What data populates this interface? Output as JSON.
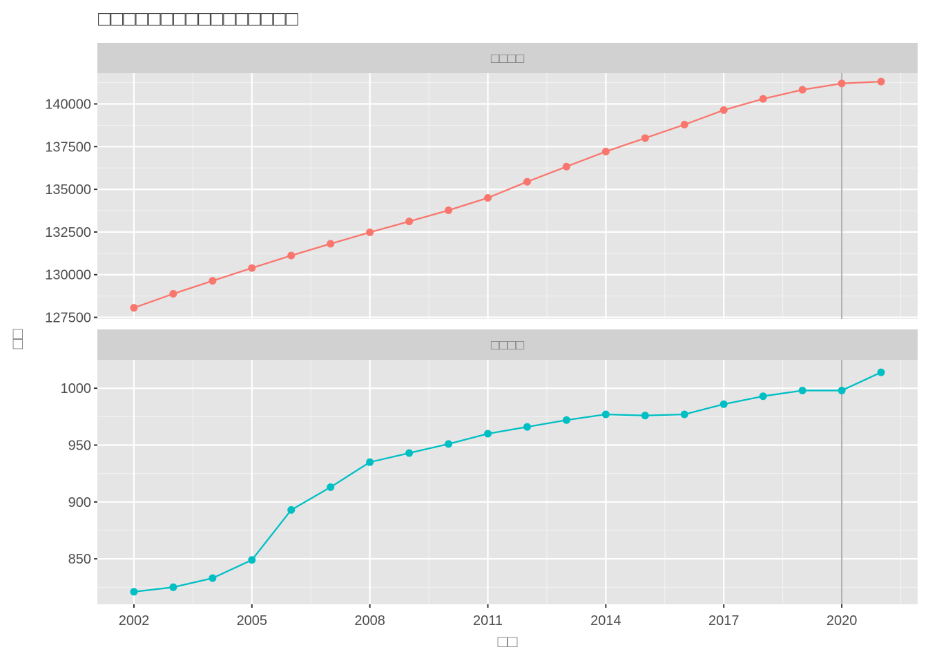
{
  "chart_data": {
    "type": "line",
    "title": "□□□□□□□□□□□□□□□□",
    "xlabel": "□□",
    "ylabel": "□□",
    "x": [
      2002,
      2003,
      2004,
      2005,
      2006,
      2007,
      2008,
      2009,
      2010,
      2011,
      2012,
      2013,
      2014,
      2015,
      2016,
      2017,
      2018,
      2019,
      2020,
      2021
    ],
    "x_ticks": [
      2002,
      2005,
      2008,
      2011,
      2014,
      2017,
      2020
    ],
    "reference_line_x": 2020,
    "grid": true,
    "panels": [
      {
        "label": "□□□□",
        "color": "#F8766D",
        "ylim": [
          127400,
          141800
        ],
        "y_ticks": [
          127500,
          130000,
          132500,
          135000,
          137500,
          140000
        ],
        "values": [
          128060,
          128880,
          129640,
          130390,
          131120,
          131810,
          132480,
          133120,
          133770,
          134500,
          135440,
          136330,
          137210,
          138000,
          138790,
          139640,
          140300,
          140830,
          141200,
          141310
        ]
      },
      {
        "label": "□□□□",
        "color": "#00BFC4",
        "ylim": [
          810,
          1025
        ],
        "y_ticks": [
          850,
          900,
          950,
          1000
        ],
        "values": [
          821,
          825,
          833,
          849,
          893,
          913,
          935,
          943,
          951,
          960,
          966,
          972,
          977,
          976,
          977,
          986,
          993,
          998,
          998,
          1014
        ]
      }
    ]
  }
}
